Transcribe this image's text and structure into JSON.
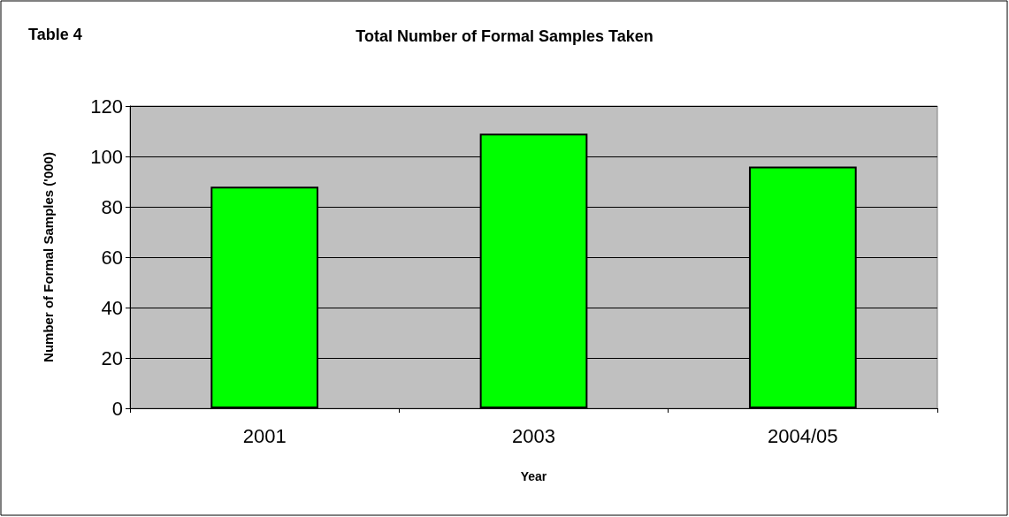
{
  "chart_data": {
    "type": "bar",
    "title": "Total Number of Formal Samples Taken",
    "annotations": [
      "Table 4"
    ],
    "xlabel": "Year",
    "ylabel": "Number of Formal Samples ('000)",
    "categories": [
      "2001",
      "2003",
      "2004/05"
    ],
    "values": [
      88,
      109,
      96
    ],
    "color": "#00ff00",
    "ylim": [
      0,
      120
    ],
    "yticks": [
      0,
      20,
      40,
      60,
      80,
      100,
      120
    ],
    "grid": "y"
  }
}
